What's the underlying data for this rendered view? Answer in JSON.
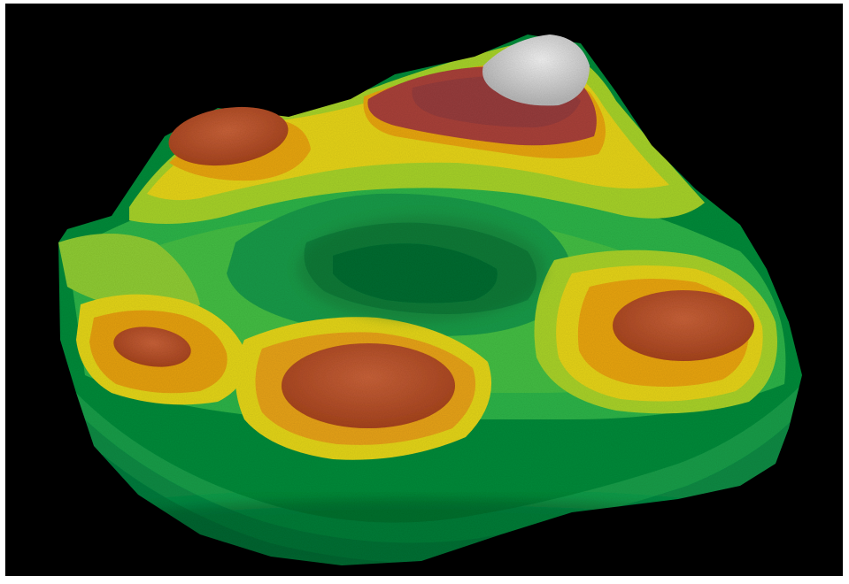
{
  "scene": {
    "subject": "terrain-relief-model",
    "background_color": "#000000",
    "frame_color": "#ffffff",
    "elevation_palette": [
      "#0f8a3a",
      "#1fae46",
      "#55c43a",
      "#a8d12a",
      "#e6d21e",
      "#e8a419",
      "#d9771c",
      "#b24a1f",
      "#8a3a3a",
      "#d9d9d9"
    ]
  }
}
